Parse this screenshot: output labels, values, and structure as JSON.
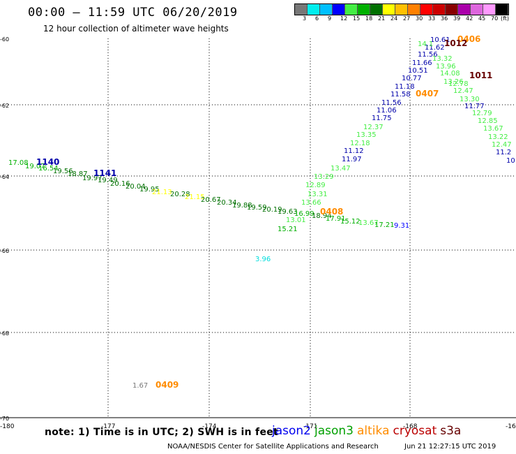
{
  "header": {
    "title": "00:00 – 11:59 UTC 06/20/2019",
    "subtitle": "12 hour collection of altimeter wave heights"
  },
  "colorbar": {
    "colors": [
      "#777777",
      "#00eeee",
      "#00c0ff",
      "#0000ff",
      "#44ee44",
      "#00b000",
      "#007000",
      "#ffff00",
      "#ffc000",
      "#ff8000",
      "#ff0000",
      "#cc0000",
      "#880000",
      "#aa00aa",
      "#dd66dd",
      "#ff99ff",
      "#000000"
    ],
    "labels": [
      "3",
      "6",
      "9",
      "12",
      "15",
      "18",
      "21",
      "24",
      "27",
      "30",
      "33",
      "36",
      "39",
      "42",
      "45",
      "70",
      "(ft)"
    ]
  },
  "axes": {
    "lon_labels": [
      "-180",
      "-177",
      "-174",
      "-171",
      "-168",
      "-16"
    ],
    "lat_labels": [
      "-60",
      "-62",
      "-64",
      "-66",
      "-68",
      "-70"
    ]
  },
  "observations": [
    {
      "t": "17.08",
      "c": "#00b000"
    },
    {
      "t": "19.07",
      "c": "#00b000"
    },
    {
      "t": "16.54",
      "c": "#00b000"
    },
    {
      "t": "19.56",
      "c": "#007000"
    },
    {
      "t": "18.87",
      "c": "#007000"
    },
    {
      "t": "19.97",
      "c": "#007000"
    },
    {
      "t": "19.49",
      "c": "#007000"
    },
    {
      "t": "20.16",
      "c": "#007000"
    },
    {
      "t": "20.04",
      "c": "#007000"
    },
    {
      "t": "19.95",
      "c": "#007000"
    },
    {
      "t": "21.13",
      "c": "#ffff00"
    },
    {
      "t": "20.28",
      "c": "#007000"
    },
    {
      "t": "21.15",
      "c": "#ffff00"
    },
    {
      "t": "20.67",
      "c": "#007000"
    },
    {
      "t": "20.34",
      "c": "#007000"
    },
    {
      "t": "19.88",
      "c": "#007000"
    },
    {
      "t": "19.59",
      "c": "#007000"
    },
    {
      "t": "20.19",
      "c": "#007000"
    },
    {
      "t": "19.63",
      "c": "#007000"
    },
    {
      "t": "13.66",
      "c": "#44ee44"
    },
    {
      "t": "13.01",
      "c": "#44ee44"
    },
    {
      "t": "15.21",
      "c": "#00b000"
    },
    {
      "t": "16.99",
      "c": "#00b000"
    },
    {
      "t": "18.94",
      "c": "#007000"
    },
    {
      "t": "17.91",
      "c": "#00b000"
    },
    {
      "t": "15.12",
      "c": "#00b000"
    },
    {
      "t": "13.67",
      "c": "#44ee44"
    },
    {
      "t": "17.21",
      "c": "#00b000"
    },
    {
      "t": "9.31",
      "c": "#0000ff"
    },
    {
      "t": "3.96",
      "c": "#00dddd"
    },
    {
      "t": "1.67",
      "c": "#777777"
    },
    {
      "t": "13.31",
      "c": "#44ee44"
    },
    {
      "t": "12.89",
      "c": "#44ee44"
    },
    {
      "t": "13.29",
      "c": "#44ee44"
    },
    {
      "t": "13.47",
      "c": "#44ee44"
    },
    {
      "t": "11.97",
      "c": "#0000aa"
    },
    {
      "t": "11.12",
      "c": "#0000aa"
    },
    {
      "t": "12.18",
      "c": "#44ee44"
    },
    {
      "t": "13.35",
      "c": "#44ee44"
    },
    {
      "t": "12.37",
      "c": "#44ee44"
    },
    {
      "t": "11.75",
      "c": "#0000aa"
    },
    {
      "t": "11.06",
      "c": "#0000aa"
    },
    {
      "t": "11.56",
      "c": "#0000aa"
    },
    {
      "t": "11.58",
      "c": "#0000aa"
    },
    {
      "t": "11.18",
      "c": "#0000aa"
    },
    {
      "t": "10.77",
      "c": "#0000aa"
    },
    {
      "t": "10.51",
      "c": "#0000aa"
    },
    {
      "t": "11.66",
      "c": "#0000aa"
    },
    {
      "t": "11.56",
      "c": "#0000aa"
    },
    {
      "t": "11.62",
      "c": "#0000aa"
    },
    {
      "t": "10.61",
      "c": "#0000aa"
    },
    {
      "t": "14.1",
      "c": "#44ee44"
    },
    {
      "t": "13.32",
      "c": "#44ee44"
    },
    {
      "t": "13.96",
      "c": "#44ee44"
    },
    {
      "t": "14.08",
      "c": "#44ee44"
    },
    {
      "t": "13.26",
      "c": "#44ee44"
    },
    {
      "t": "12.78",
      "c": "#44ee44"
    },
    {
      "t": "12.47",
      "c": "#44ee44"
    },
    {
      "t": "13.30",
      "c": "#44ee44"
    },
    {
      "t": "11.77",
      "c": "#0000aa"
    },
    {
      "t": "12.79",
      "c": "#44ee44"
    },
    {
      "t": "12.85",
      "c": "#44ee44"
    },
    {
      "t": "13.67",
      "c": "#44ee44"
    },
    {
      "t": "13.22",
      "c": "#44ee44"
    },
    {
      "t": "12.47",
      "c": "#44ee44"
    },
    {
      "t": "11.2",
      "c": "#0000aa"
    },
    {
      "t": "10",
      "c": "#0000aa"
    }
  ],
  "time_tags": [
    {
      "t": "1140",
      "c": "#0000aa"
    },
    {
      "t": "1141",
      "c": "#0000aa"
    },
    {
      "t": "0408",
      "c": "#ff8c00"
    },
    {
      "t": "0407",
      "c": "#ff8c00"
    },
    {
      "t": "0406",
      "c": "#ff8c00"
    },
    {
      "t": "1012",
      "c": "#660000"
    },
    {
      "t": "1011",
      "c": "#660000"
    },
    {
      "t": "0409",
      "c": "#ff8c00"
    }
  ],
  "note": "note: 1) Time is in UTC; 2) SWH is in feet",
  "legend": [
    {
      "name": "jason2",
      "color": "#0000ee"
    },
    {
      "name": "jason3",
      "color": "#00a000"
    },
    {
      "name": "altika",
      "color": "#ff8c00"
    },
    {
      "name": "cryosat",
      "color": "#bb0000"
    },
    {
      "name": "s3a",
      "color": "#660000"
    }
  ],
  "credit": "NOAA/NESDIS Center for Satellite Applications and Research",
  "timestamp": "Jun 21 12:27:15 UTC 2019"
}
